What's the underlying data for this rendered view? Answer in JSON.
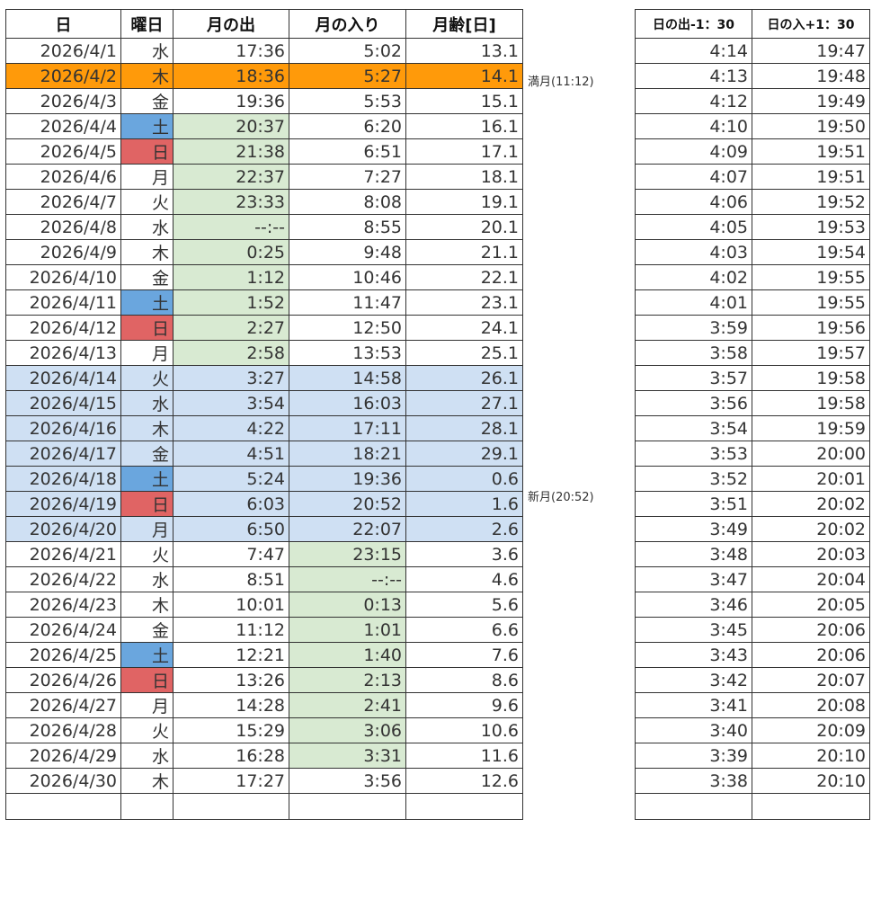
{
  "moon_table": {
    "headers": [
      "日",
      "曜日",
      "月の出",
      "月の入り",
      "月齢[日]"
    ],
    "rows": [
      {
        "date": "2026/4/1",
        "dow": "水",
        "rise": "17:36",
        "set": "5:02",
        "age": "13.1"
      },
      {
        "date": "2026/4/2",
        "dow": "木",
        "rise": "18:36",
        "set": "5:27",
        "age": "14.1"
      },
      {
        "date": "2026/4/3",
        "dow": "金",
        "rise": "19:36",
        "set": "5:53",
        "age": "15.1"
      },
      {
        "date": "2026/4/4",
        "dow": "土",
        "rise": "20:37",
        "set": "6:20",
        "age": "16.1"
      },
      {
        "date": "2026/4/5",
        "dow": "日",
        "rise": "21:38",
        "set": "6:51",
        "age": "17.1"
      },
      {
        "date": "2026/4/6",
        "dow": "月",
        "rise": "22:37",
        "set": "7:27",
        "age": "18.1"
      },
      {
        "date": "2026/4/7",
        "dow": "火",
        "rise": "23:33",
        "set": "8:08",
        "age": "19.1"
      },
      {
        "date": "2026/4/8",
        "dow": "水",
        "rise": "--:--",
        "set": "8:55",
        "age": "20.1"
      },
      {
        "date": "2026/4/9",
        "dow": "木",
        "rise": "0:25",
        "set": "9:48",
        "age": "21.1"
      },
      {
        "date": "2026/4/10",
        "dow": "金",
        "rise": "1:12",
        "set": "10:46",
        "age": "22.1"
      },
      {
        "date": "2026/4/11",
        "dow": "土",
        "rise": "1:52",
        "set": "11:47",
        "age": "23.1"
      },
      {
        "date": "2026/4/12",
        "dow": "日",
        "rise": "2:27",
        "set": "12:50",
        "age": "24.1"
      },
      {
        "date": "2026/4/13",
        "dow": "月",
        "rise": "2:58",
        "set": "13:53",
        "age": "25.1"
      },
      {
        "date": "2026/4/14",
        "dow": "火",
        "rise": "3:27",
        "set": "14:58",
        "age": "26.1"
      },
      {
        "date": "2026/4/15",
        "dow": "水",
        "rise": "3:54",
        "set": "16:03",
        "age": "27.1"
      },
      {
        "date": "2026/4/16",
        "dow": "木",
        "rise": "4:22",
        "set": "17:11",
        "age": "28.1"
      },
      {
        "date": "2026/4/17",
        "dow": "金",
        "rise": "4:51",
        "set": "18:21",
        "age": "29.1"
      },
      {
        "date": "2026/4/18",
        "dow": "土",
        "rise": "5:24",
        "set": "19:36",
        "age": "0.6"
      },
      {
        "date": "2026/4/19",
        "dow": "日",
        "rise": "6:03",
        "set": "20:52",
        "age": "1.6"
      },
      {
        "date": "2026/4/20",
        "dow": "月",
        "rise": "6:50",
        "set": "22:07",
        "age": "2.6"
      },
      {
        "date": "2026/4/21",
        "dow": "火",
        "rise": "7:47",
        "set": "23:15",
        "age": "3.6"
      },
      {
        "date": "2026/4/22",
        "dow": "水",
        "rise": "8:51",
        "set": "--:--",
        "age": "4.6"
      },
      {
        "date": "2026/4/23",
        "dow": "木",
        "rise": "10:01",
        "set": "0:13",
        "age": "5.6"
      },
      {
        "date": "2026/4/24",
        "dow": "金",
        "rise": "11:12",
        "set": "1:01",
        "age": "6.6"
      },
      {
        "date": "2026/4/25",
        "dow": "土",
        "rise": "12:21",
        "set": "1:40",
        "age": "7.6"
      },
      {
        "date": "2026/4/26",
        "dow": "日",
        "rise": "13:26",
        "set": "2:13",
        "age": "8.6"
      },
      {
        "date": "2026/4/27",
        "dow": "月",
        "rise": "14:28",
        "set": "2:41",
        "age": "9.6"
      },
      {
        "date": "2026/4/28",
        "dow": "火",
        "rise": "15:29",
        "set": "3:06",
        "age": "10.6"
      },
      {
        "date": "2026/4/29",
        "dow": "水",
        "rise": "16:28",
        "set": "3:31",
        "age": "11.6"
      },
      {
        "date": "2026/4/30",
        "dow": "木",
        "rise": "17:27",
        "set": "3:56",
        "age": "12.6"
      }
    ]
  },
  "notes": {
    "full_moon": "満月(11:12)",
    "new_moon": "新月(20:52)"
  },
  "sun_table": {
    "headers": [
      "日の出-1：30",
      "日の入+1：30"
    ],
    "rows": [
      [
        "4:14",
        "19:47"
      ],
      [
        "4:13",
        "19:48"
      ],
      [
        "4:12",
        "19:49"
      ],
      [
        "4:10",
        "19:50"
      ],
      [
        "4:09",
        "19:51"
      ],
      [
        "4:07",
        "19:51"
      ],
      [
        "4:06",
        "19:52"
      ],
      [
        "4:05",
        "19:53"
      ],
      [
        "4:03",
        "19:54"
      ],
      [
        "4:02",
        "19:55"
      ],
      [
        "4:01",
        "19:55"
      ],
      [
        "3:59",
        "19:56"
      ],
      [
        "3:58",
        "19:57"
      ],
      [
        "3:57",
        "19:58"
      ],
      [
        "3:56",
        "19:58"
      ],
      [
        "3:54",
        "19:59"
      ],
      [
        "3:53",
        "20:00"
      ],
      [
        "3:52",
        "20:01"
      ],
      [
        "3:51",
        "20:02"
      ],
      [
        "3:49",
        "20:02"
      ],
      [
        "3:48",
        "20:03"
      ],
      [
        "3:47",
        "20:04"
      ],
      [
        "3:46",
        "20:05"
      ],
      [
        "3:45",
        "20:06"
      ],
      [
        "3:43",
        "20:06"
      ],
      [
        "3:42",
        "20:07"
      ],
      [
        "3:41",
        "20:08"
      ],
      [
        "3:40",
        "20:09"
      ],
      [
        "3:39",
        "20:10"
      ],
      [
        "3:38",
        "20:10"
      ]
    ]
  },
  "colors": {
    "full_moon_row": "#ff9a0a",
    "new_moon_rows": "#cfe0f3",
    "saturday": "#6aa6de",
    "sunday": "#e06464",
    "green_highlight": "#d8ead2"
  }
}
